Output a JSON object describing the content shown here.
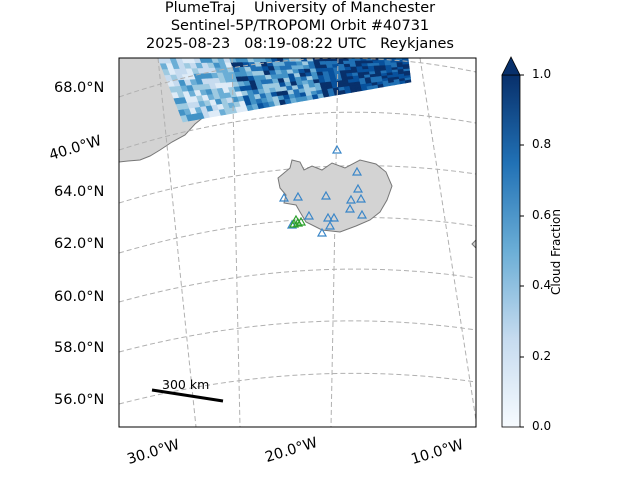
{
  "header": {
    "line1": "PlumeTraj    University of Manchester",
    "line2": "Sentinel-5P/TROPOMI Orbit #40731",
    "line3": "2025-08-23   08:19-08:22 UTC   Reykjanes"
  },
  "map": {
    "lat_labels": [
      "68.0°N",
      "64.0°N",
      "62.0°N",
      "60.0°N",
      "58.0°N",
      "56.0°N"
    ],
    "lon_labels": [
      "40.0°W",
      "30.0°W",
      "20.0°W",
      "10.0°W"
    ],
    "scale_bar_label": "300 km",
    "land_color": "#d3d3d3",
    "grid_color": "#b0b0b0",
    "volcano_marker_color": "#3a86c8",
    "vent_marker_color": "#2ca02c",
    "marker_symbol": "triangle"
  },
  "colorbar": {
    "label": "Cloud Fraction",
    "ticks": [
      "1.0",
      "0.8",
      "0.6",
      "0.4",
      "0.2",
      "0.0"
    ],
    "range": [
      0.0,
      1.0
    ],
    "colormap": "Blues",
    "extend": "max"
  }
}
